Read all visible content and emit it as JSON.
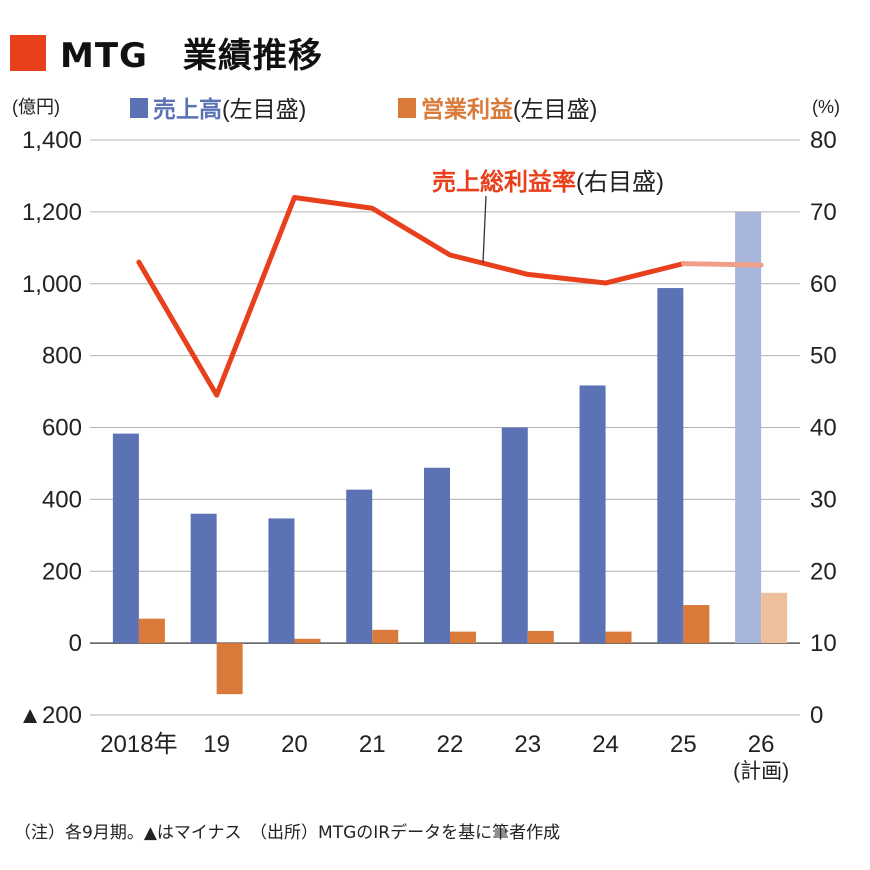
{
  "title": "MTG　業績推移",
  "colors": {
    "accent": "#e8401c",
    "sales": "#5b72b5",
    "sales_plan": "#a9b6dc",
    "profit": "#d97a3a",
    "profit_plan": "#eebf9c",
    "margin": "#e8401c",
    "margin_plan": "#f0a08a",
    "grid": "#b0b0b0"
  },
  "chart_data": {
    "type": "bar",
    "categories": [
      "2018年",
      "19",
      "20",
      "21",
      "22",
      "23",
      "24",
      "25",
      "26"
    ],
    "category_notes": [
      "",
      "",
      "",
      "",
      "",
      "",
      "",
      "",
      "(計画)"
    ],
    "plan_index": 8,
    "left_axis": {
      "unit": "(億円)",
      "range": [
        -200,
        1400
      ],
      "ticks": [
        -200,
        0,
        200,
        400,
        600,
        800,
        1000,
        1200,
        1400
      ],
      "tick_labels": [
        "▲200",
        "0",
        "200",
        "400",
        "600",
        "800",
        "1,000",
        "1,200",
        "1,400"
      ]
    },
    "right_axis": {
      "unit": "(%)",
      "range": [
        0,
        80
      ],
      "ticks": [
        0,
        10,
        20,
        30,
        40,
        50,
        60,
        70,
        80
      ],
      "tick_labels": [
        "0",
        "10",
        "20",
        "30",
        "40",
        "50",
        "60",
        "70",
        "80"
      ]
    },
    "series": [
      {
        "name": "売上高",
        "axis_note": "(左目盛)",
        "type": "bar",
        "axis": "left",
        "values": [
          583,
          360,
          347,
          427,
          488,
          600,
          717,
          988,
          1200
        ]
      },
      {
        "name": "営業利益",
        "axis_note": "(左目盛)",
        "type": "bar",
        "axis": "left",
        "values": [
          68,
          -142,
          12,
          37,
          32,
          34,
          32,
          106,
          140
        ]
      },
      {
        "name": "売上総利益率",
        "axis_note": "(右目盛)",
        "type": "line",
        "axis": "right",
        "values": [
          63,
          44.5,
          72,
          70.5,
          64,
          61.3,
          60.1,
          62.8,
          62.6
        ]
      }
    ],
    "grid": true
  },
  "footnote": "（注）各9月期。▲はマイナス　（出所）MTGのIRデータを基に筆者作成"
}
